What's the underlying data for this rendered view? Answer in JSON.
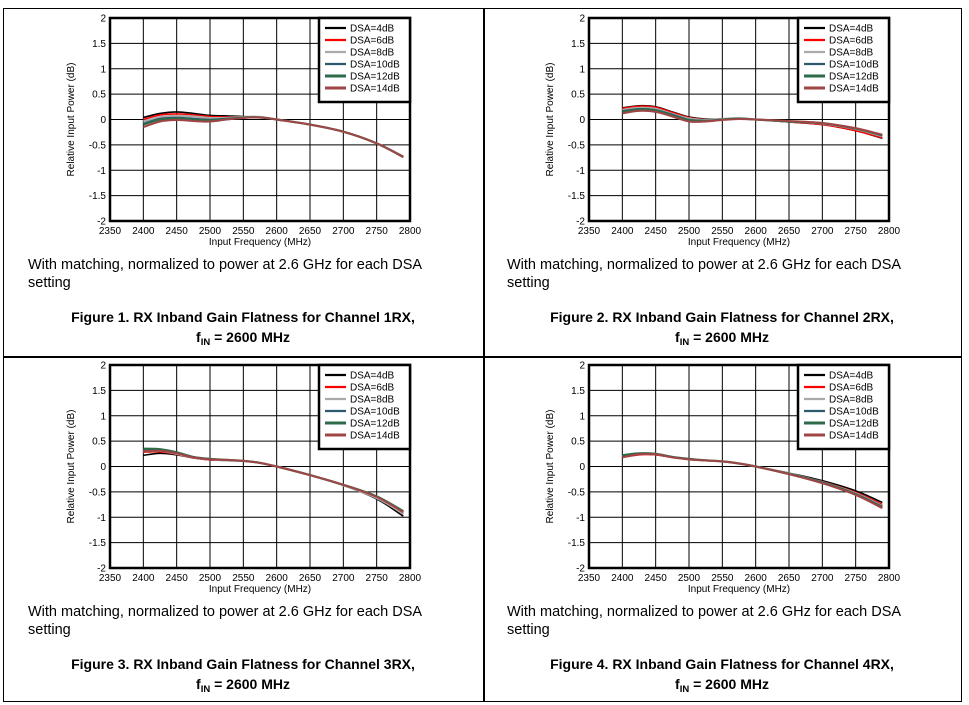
{
  "chart_data": [
    {
      "type": "line",
      "title": "Figure 1. RX Inband Gain Flatness for Channel 1RX,",
      "subtitle_prefix": "f",
      "subtitle_subscript": "IN",
      "subtitle_suffix": " = 2600 MHz",
      "note": "With matching, normalized to power at 2.6 GHz for each DSA setting",
      "xlabel": "Input Frequency (MHz)",
      "ylabel": "Relative Input Power (dB)",
      "xlim": [
        2350,
        2800
      ],
      "ylim": [
        -2,
        2
      ],
      "xticks": [
        "2350",
        "2400",
        "2450",
        "2500",
        "2550",
        "2600",
        "2650",
        "2700",
        "2750",
        "2800"
      ],
      "yticks": [
        "2",
        "1.5",
        "1",
        "0.5",
        "0",
        "-0.5",
        "-1",
        "-1.5",
        "-2"
      ],
      "grid": true,
      "legend_position": "top-right",
      "x": [
        2400,
        2425,
        2450,
        2475,
        2500,
        2525,
        2550,
        2575,
        2600,
        2650,
        2700,
        2750,
        2790
      ],
      "series": [
        {
          "name": "DSA=4dB",
          "color": "#000000",
          "values": [
            0.04,
            0.12,
            0.15,
            0.12,
            0.08,
            0.07,
            0.06,
            0.04,
            0.0,
            -0.1,
            -0.24,
            -0.47,
            -0.73
          ]
        },
        {
          "name": "DSA=6dB",
          "color": "#ff0000",
          "values": [
            0.0,
            0.09,
            0.11,
            0.09,
            0.06,
            0.05,
            0.05,
            0.04,
            0.0,
            -0.1,
            -0.24,
            -0.47,
            -0.73
          ]
        },
        {
          "name": "DSA=8dB",
          "color": "#aaaaaa",
          "values": [
            -0.04,
            0.05,
            0.07,
            0.06,
            0.03,
            0.03,
            0.05,
            0.05,
            0.0,
            -0.1,
            -0.24,
            -0.47,
            -0.73
          ]
        },
        {
          "name": "DSA=10dB",
          "color": "#2e5a6e",
          "values": [
            -0.08,
            0.02,
            0.04,
            0.02,
            0.0,
            0.02,
            0.04,
            0.04,
            0.0,
            -0.1,
            -0.24,
            -0.47,
            -0.73
          ]
        },
        {
          "name": "DSA=12dB",
          "color": "#2e6b4a",
          "values": [
            -0.1,
            0.0,
            0.02,
            0.0,
            -0.02,
            0.01,
            0.04,
            0.04,
            0.0,
            -0.1,
            -0.24,
            -0.47,
            -0.74
          ]
        },
        {
          "name": "DSA=14dB",
          "color": "#a04545",
          "values": [
            -0.15,
            -0.04,
            -0.01,
            -0.03,
            -0.04,
            0.0,
            0.03,
            0.04,
            0.0,
            -0.1,
            -0.24,
            -0.47,
            -0.74
          ]
        }
      ]
    },
    {
      "type": "line",
      "title": "Figure 2. RX Inband Gain Flatness for Channel 2RX,",
      "subtitle_prefix": "f",
      "subtitle_subscript": "IN",
      "subtitle_suffix": " = 2600 MHz",
      "note": "With matching, normalized to power at 2.6 GHz for each DSA setting",
      "xlabel": "Input Frequency (MHz)",
      "ylabel": "Relative Input Power (dB)",
      "xlim": [
        2350,
        2800
      ],
      "ylim": [
        -2,
        2
      ],
      "xticks": [
        "2350",
        "2400",
        "2450",
        "2500",
        "2550",
        "2600",
        "2650",
        "2700",
        "2750",
        "2800"
      ],
      "yticks": [
        "2",
        "1.5",
        "1",
        "0.5",
        "0",
        "-0.5",
        "-1",
        "-1.5",
        "-2"
      ],
      "grid": true,
      "legend_position": "top-right",
      "x": [
        2400,
        2425,
        2450,
        2475,
        2500,
        2525,
        2550,
        2575,
        2600,
        2650,
        2700,
        2750,
        2790
      ],
      "series": [
        {
          "name": "DSA=4dB",
          "color": "#000000",
          "values": [
            0.23,
            0.27,
            0.25,
            0.15,
            0.05,
            0.01,
            0.01,
            0.02,
            0.0,
            -0.05,
            -0.1,
            -0.22,
            -0.37
          ]
        },
        {
          "name": "DSA=6dB",
          "color": "#ff0000",
          "values": [
            0.22,
            0.26,
            0.24,
            0.14,
            0.04,
            0.0,
            0.01,
            0.02,
            0.0,
            -0.05,
            -0.1,
            -0.22,
            -0.36
          ]
        },
        {
          "name": "DSA=8dB",
          "color": "#aaaaaa",
          "values": [
            0.19,
            0.23,
            0.21,
            0.11,
            0.02,
            -0.01,
            0.01,
            0.02,
            0.0,
            -0.04,
            -0.08,
            -0.19,
            -0.33
          ]
        },
        {
          "name": "DSA=10dB",
          "color": "#2e5a6e",
          "values": [
            0.17,
            0.21,
            0.19,
            0.1,
            0.0,
            -0.02,
            0.0,
            0.02,
            0.0,
            -0.04,
            -0.08,
            -0.18,
            -0.32
          ]
        },
        {
          "name": "DSA=12dB",
          "color": "#2e6b4a",
          "values": [
            0.15,
            0.2,
            0.18,
            0.08,
            -0.01,
            -0.03,
            0.0,
            0.02,
            0.0,
            -0.04,
            -0.07,
            -0.18,
            -0.31
          ]
        },
        {
          "name": "DSA=14dB",
          "color": "#a04545",
          "values": [
            0.12,
            0.17,
            0.15,
            0.06,
            -0.04,
            -0.04,
            -0.01,
            0.01,
            0.0,
            -0.03,
            -0.07,
            -0.17,
            -0.3
          ]
        }
      ]
    },
    {
      "type": "line",
      "title": "Figure 3. RX Inband Gain Flatness for Channel 3RX,",
      "subtitle_prefix": "f",
      "subtitle_subscript": "IN",
      "subtitle_suffix": " = 2600 MHz",
      "note": "With matching, normalized to power at 2.6 GHz for each DSA setting",
      "xlabel": "Input Frequency (MHz)",
      "ylabel": "Relative Input Power (dB)",
      "xlim": [
        2350,
        2800
      ],
      "ylim": [
        -2,
        2
      ],
      "xticks": [
        "2350",
        "2400",
        "2450",
        "2500",
        "2550",
        "2600",
        "2650",
        "2700",
        "2750",
        "2800"
      ],
      "yticks": [
        "2",
        "1.5",
        "1",
        "0.5",
        "0",
        "-0.5",
        "-1",
        "-1.5",
        "-2"
      ],
      "grid": true,
      "legend_position": "top-right",
      "x": [
        2400,
        2425,
        2450,
        2475,
        2500,
        2525,
        2550,
        2575,
        2600,
        2650,
        2700,
        2750,
        2790
      ],
      "series": [
        {
          "name": "DSA=4dB",
          "color": "#000000",
          "values": [
            0.22,
            0.26,
            0.23,
            0.17,
            0.13,
            0.12,
            0.11,
            0.07,
            0.0,
            -0.17,
            -0.37,
            -0.64,
            -0.98
          ]
        },
        {
          "name": "DSA=6dB",
          "color": "#ff0000",
          "values": [
            0.28,
            0.29,
            0.24,
            0.17,
            0.13,
            0.12,
            0.11,
            0.07,
            0.0,
            -0.17,
            -0.37,
            -0.62,
            -0.94
          ]
        },
        {
          "name": "DSA=8dB",
          "color": "#aaaaaa",
          "values": [
            0.3,
            0.31,
            0.25,
            0.18,
            0.14,
            0.12,
            0.11,
            0.07,
            0.0,
            -0.17,
            -0.37,
            -0.62,
            -0.93
          ]
        },
        {
          "name": "DSA=10dB",
          "color": "#2e5a6e",
          "values": [
            0.33,
            0.33,
            0.27,
            0.19,
            0.14,
            0.13,
            0.11,
            0.07,
            0.0,
            -0.17,
            -0.36,
            -0.6,
            -0.9
          ]
        },
        {
          "name": "DSA=12dB",
          "color": "#2e6b4a",
          "values": [
            0.35,
            0.34,
            0.28,
            0.19,
            0.15,
            0.13,
            0.11,
            0.07,
            0.0,
            -0.17,
            -0.36,
            -0.59,
            -0.88
          ]
        },
        {
          "name": "DSA=14dB",
          "color": "#a04545",
          "values": [
            0.3,
            0.31,
            0.26,
            0.18,
            0.14,
            0.13,
            0.11,
            0.07,
            0.0,
            -0.17,
            -0.36,
            -0.6,
            -0.9
          ]
        }
      ]
    },
    {
      "type": "line",
      "title": "Figure 4. RX Inband Gain Flatness for Channel 4RX,",
      "subtitle_prefix": "f",
      "subtitle_subscript": "IN",
      "subtitle_suffix": " = 2600 MHz",
      "note": "With matching, normalized to power at 2.6 GHz for each DSA setting",
      "xlabel": "Input Frequency (MHz)",
      "ylabel": "Relative Input Power (dB)",
      "xlim": [
        2350,
        2800
      ],
      "ylim": [
        -2,
        2
      ],
      "xticks": [
        "2350",
        "2400",
        "2450",
        "2500",
        "2550",
        "2600",
        "2650",
        "2700",
        "2750",
        "2800"
      ],
      "yticks": [
        "2",
        "1.5",
        "1",
        "0.5",
        "0",
        "-0.5",
        "-1",
        "-1.5",
        "-2"
      ],
      "grid": true,
      "legend_position": "top-right",
      "x": [
        2400,
        2425,
        2450,
        2475,
        2500,
        2525,
        2550,
        2575,
        2600,
        2650,
        2700,
        2750,
        2790
      ],
      "series": [
        {
          "name": "DSA=4dB",
          "color": "#000000",
          "values": [
            0.19,
            0.24,
            0.23,
            0.18,
            0.14,
            0.12,
            0.1,
            0.06,
            0.0,
            -0.13,
            -0.28,
            -0.48,
            -0.71
          ]
        },
        {
          "name": "DSA=6dB",
          "color": "#ff0000",
          "values": [
            0.18,
            0.23,
            0.23,
            0.18,
            0.14,
            0.12,
            0.1,
            0.06,
            0.0,
            -0.14,
            -0.3,
            -0.51,
            -0.75
          ]
        },
        {
          "name": "DSA=8dB",
          "color": "#aaaaaa",
          "values": [
            0.2,
            0.25,
            0.24,
            0.19,
            0.14,
            0.12,
            0.1,
            0.06,
            0.0,
            -0.14,
            -0.31,
            -0.53,
            -0.78
          ]
        },
        {
          "name": "DSA=10dB",
          "color": "#2e5a6e",
          "values": [
            0.21,
            0.25,
            0.24,
            0.19,
            0.14,
            0.12,
            0.1,
            0.06,
            0.0,
            -0.14,
            -0.31,
            -0.54,
            -0.79
          ]
        },
        {
          "name": "DSA=12dB",
          "color": "#2e6b4a",
          "values": [
            0.22,
            0.26,
            0.25,
            0.19,
            0.15,
            0.12,
            0.1,
            0.06,
            0.0,
            -0.15,
            -0.32,
            -0.55,
            -0.8
          ]
        },
        {
          "name": "DSA=14dB",
          "color": "#a04545",
          "values": [
            0.18,
            0.24,
            0.24,
            0.18,
            0.14,
            0.12,
            0.1,
            0.06,
            0.0,
            -0.15,
            -0.33,
            -0.56,
            -0.82
          ]
        }
      ]
    }
  ]
}
